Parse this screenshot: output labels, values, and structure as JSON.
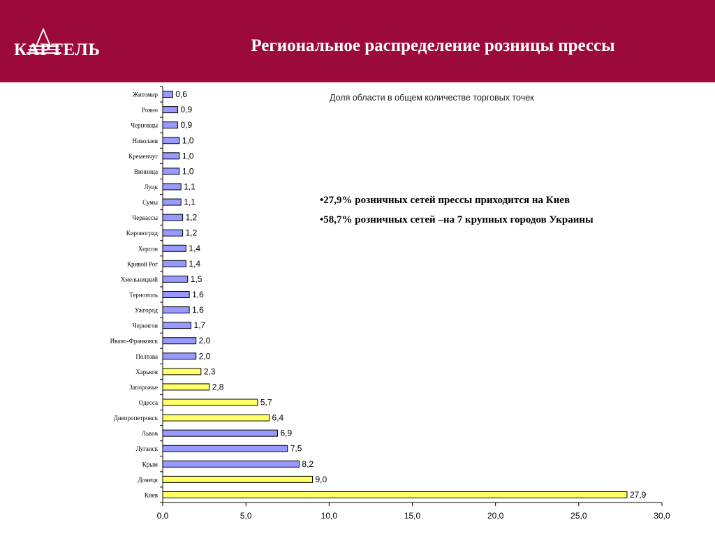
{
  "header": {
    "logo_text": "КАРТЕЛЬ",
    "title": "Региональное распределение розницы прессы",
    "background": "#9b0a3a"
  },
  "notes": [
    "•27,9% розничных сетей прессы приходится на Киев",
    "•58,7% розничных сетей –на 7 крупных городов Украины"
  ],
  "chart_data": {
    "type": "bar",
    "orientation": "horizontal",
    "title": "Доля области в общем количестве торговых точек",
    "xlim": [
      0,
      30
    ],
    "xticks": [
      "0,0",
      "5,0",
      "10,0",
      "15,0",
      "20,0",
      "25,0",
      "30,0"
    ],
    "grid": false,
    "colors": {
      "blue": "#9999ff",
      "yellow": "#ffff66",
      "outline": "#000000"
    },
    "categories": [
      "Житомир",
      "Ровно",
      "Черновцы",
      "Николаев",
      "Кременчуг",
      "Винница",
      "Луцк",
      "Сумы",
      "Черкассы",
      "Кировоград",
      "Херсон",
      "Кривой Рог",
      "Хмельницкий",
      "Тернополь",
      "Ужгород",
      "Чернигов",
      "Ивано-Франковск",
      "Полтава",
      "Харьков",
      "Запорожье",
      "Одесса",
      "Днепропетровск",
      "Львов",
      "Луганск",
      "Крым",
      "Донецк",
      "Киев"
    ],
    "values": [
      0.6,
      0.9,
      0.9,
      1.0,
      1.0,
      1.0,
      1.1,
      1.1,
      1.2,
      1.2,
      1.4,
      1.4,
      1.5,
      1.6,
      1.6,
      1.7,
      2.0,
      2.0,
      2.3,
      2.8,
      5.7,
      6.4,
      6.9,
      7.5,
      8.2,
      9.0,
      27.9
    ],
    "value_labels": [
      "0,6",
      "0,9",
      "0,9",
      "1,0",
      "1,0",
      "1,0",
      "1,1",
      "1,1",
      "1,2",
      "1,2",
      "1,4",
      "1,4",
      "1,5",
      "1,6",
      "1,6",
      "1,7",
      "2,0",
      "2,0",
      "2,3",
      "2,8",
      "5,7",
      "6,4",
      "6,9",
      "7,5",
      "8,2",
      "9,0",
      "27,9"
    ],
    "bar_colors": [
      "blue",
      "blue",
      "blue",
      "blue",
      "blue",
      "blue",
      "blue",
      "blue",
      "blue",
      "blue",
      "blue",
      "blue",
      "blue",
      "blue",
      "blue",
      "blue",
      "blue",
      "blue",
      "yellow",
      "yellow",
      "yellow",
      "yellow",
      "blue",
      "blue",
      "blue",
      "yellow",
      "yellow"
    ]
  }
}
